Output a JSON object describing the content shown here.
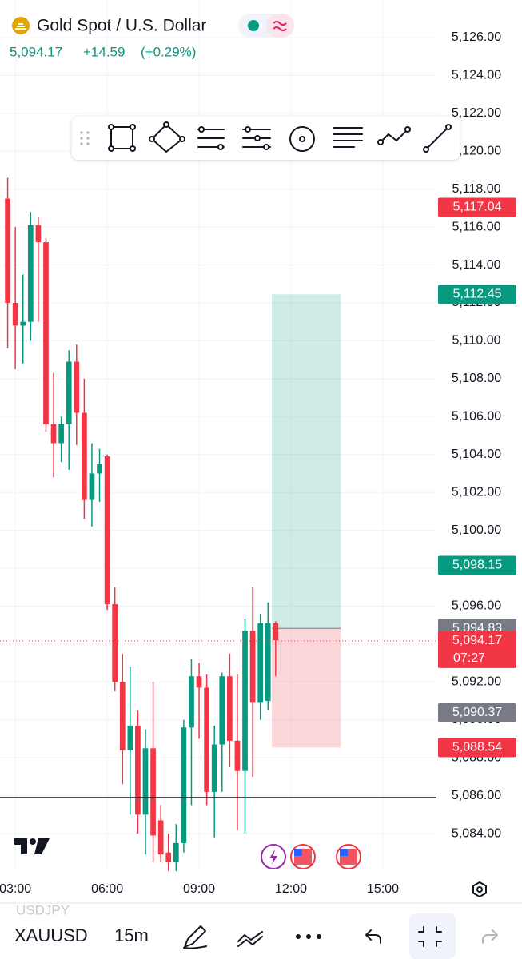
{
  "header": {
    "title": "Gold Spot / U.S. Dollar",
    "price": "5,094.17",
    "change": "+14.59",
    "change_percent": "(+0.29%)"
  },
  "chart_data": {
    "type": "candlestick",
    "x": [
      2.75,
      3,
      3.25,
      3.5,
      3.75,
      4,
      4.25,
      4.5,
      4.75,
      5,
      5.25,
      5.5,
      5.75,
      6,
      6.25,
      6.5,
      6.75,
      7,
      7.25,
      7.5,
      7.75,
      8,
      8.25,
      8.5,
      8.75,
      9,
      9.25,
      9.5,
      9.75,
      10,
      10.25,
      10.5,
      10.75,
      11,
      11.25,
      11.5
    ],
    "open": [
      5117.5,
      5112.0,
      5110.8,
      5111.0,
      5116.1,
      5115.2,
      5105.6,
      5104.6,
      5105.6,
      5108.9,
      5106.2,
      5101.6,
      5103.0,
      5103.9,
      5096.1,
      5092.0,
      5088.4,
      5089.7,
      5085.0,
      5088.5,
      5084.7,
      5083.0,
      5082.5,
      5083.5,
      5089.6,
      5092.3,
      5091.7,
      5086.2,
      5088.7,
      5092.3,
      5088.9,
      5087.3,
      5094.7,
      5090.9,
      5091.0,
      5095.1
    ],
    "high": [
      5118.6,
      5116.0,
      5113.5,
      5116.8,
      5116.5,
      5115.4,
      5108.3,
      5106.0,
      5109.5,
      5109.8,
      5108.0,
      5104.6,
      5104.3,
      5104.0,
      5097.0,
      5093.5,
      5092.8,
      5090.5,
      5089.5,
      5092.0,
      5085.5,
      5084.0,
      5084.5,
      5090.0,
      5093.2,
      5093.0,
      5092.4,
      5089.7,
      5092.5,
      5093.5,
      5092.4,
      5095.3,
      5097.0,
      5095.6,
      5096.2,
      5095.2
    ],
    "low": [
      5109.6,
      5108.5,
      5108.8,
      5110.0,
      5111.0,
      5105.2,
      5102.8,
      5103.6,
      5103.2,
      5104.5,
      5100.6,
      5100.2,
      5101.5,
      5095.8,
      5091.5,
      5086.6,
      5085.0,
      5084.0,
      5082.9,
      5082.5,
      5082.5,
      5082.0,
      5082.0,
      5083.0,
      5085.5,
      5089.0,
      5085.5,
      5083.8,
      5086.2,
      5087.5,
      5084.2,
      5084.0,
      5087.0,
      5090.0,
      5090.5,
      5092.3
    ],
    "close": [
      5112.0,
      5110.8,
      5111.0,
      5116.1,
      5115.2,
      5105.6,
      5104.6,
      5105.6,
      5108.9,
      5106.2,
      5101.6,
      5103.0,
      5103.5,
      5096.1,
      5092.0,
      5088.4,
      5089.7,
      5085.0,
      5088.5,
      5083.9,
      5082.9,
      5082.5,
      5083.5,
      5089.6,
      5092.3,
      5091.7,
      5086.2,
      5088.7,
      5092.3,
      5088.9,
      5087.3,
      5094.7,
      5090.9,
      5095.1,
      5095.1,
      5094.2
    ],
    "up_color": "#089981",
    "down_color": "#f23645",
    "xlim": [
      2.5,
      16.75
    ],
    "xticks": [
      {
        "value": 3,
        "label": "03:00"
      },
      {
        "value": 6,
        "label": "06:00"
      },
      {
        "value": 9,
        "label": "09:00"
      },
      {
        "value": 12,
        "label": "12:00"
      },
      {
        "value": 15,
        "label": "15:00"
      }
    ],
    "ylim": [
      5082.02,
      5127.98
    ],
    "yticks": [
      {
        "value": 5126,
        "label": "5,126.00"
      },
      {
        "value": 5124,
        "label": "5,124.00"
      },
      {
        "value": 5122,
        "label": "5,122.00"
      },
      {
        "value": 5120,
        "label": "5,120.00"
      },
      {
        "value": 5118,
        "label": "5,118.00"
      },
      {
        "value": 5116,
        "label": "5,116.00"
      },
      {
        "value": 5114,
        "label": "5,114.00"
      },
      {
        "value": 5112,
        "label": "5,112.00"
      },
      {
        "value": 5110,
        "label": "5,110.00"
      },
      {
        "value": 5108,
        "label": "5,108.00"
      },
      {
        "value": 5106,
        "label": "5,106.00"
      },
      {
        "value": 5104,
        "label": "5,104.00"
      },
      {
        "value": 5102,
        "label": "5,102.00"
      },
      {
        "value": 5100,
        "label": "5,100.00"
      },
      {
        "value": 5098,
        "label": "5,098.00"
      },
      {
        "value": 5096,
        "label": "5,096.00"
      },
      {
        "value": 5094,
        "label": "5,094.00"
      },
      {
        "value": 5092,
        "label": "5,092.00"
      },
      {
        "value": 5090,
        "label": "5,090.00"
      },
      {
        "value": 5088,
        "label": "5,088.00"
      },
      {
        "value": 5086,
        "label": "5,086.00"
      },
      {
        "value": 5084,
        "label": "5,084.00"
      }
    ],
    "grid": true,
    "position": {
      "x": [
        11.375,
        13.625
      ],
      "target": 5112.45,
      "entry": 5094.83,
      "stop": 5088.54
    },
    "horizontal_line": 5085.9,
    "price_labels": [
      {
        "value": 5117.04,
        "label": "5,117.04",
        "color": "#f23645"
      },
      {
        "value": 5112.45,
        "label": "5,112.45",
        "color": "#089981"
      },
      {
        "value": 5098.15,
        "label": "5,098.15",
        "color": "#089981"
      },
      {
        "value": 5094.83,
        "label": "5,094.83",
        "color": "#787b86"
      },
      {
        "value": 5094.17,
        "label": "5,094.17",
        "color": "#f23645"
      },
      {
        "value": 5090.37,
        "label": "5,090.37",
        "color": "#787b86"
      },
      {
        "value": 5088.54,
        "label": "5,088.54",
        "color": "#f23645"
      }
    ],
    "current_price_index": 4,
    "countdown": "07:27"
  },
  "bottom_bar": {
    "previous_symbol": "USDJPY",
    "symbol": "XAUUSD",
    "interval": "15m"
  }
}
